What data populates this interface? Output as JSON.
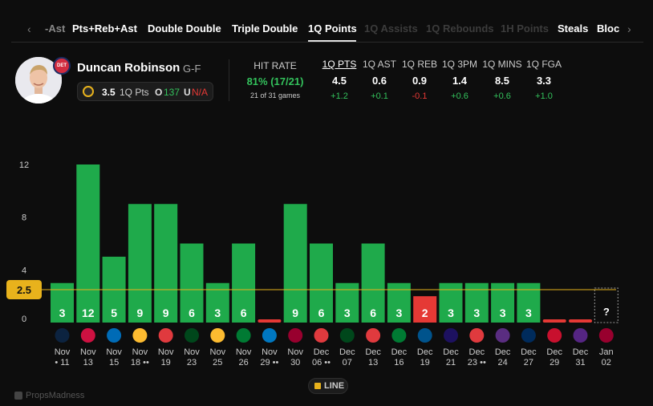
{
  "tabs": {
    "items": [
      {
        "label": "-Ast",
        "style": "faded"
      },
      {
        "label": "Pts+Reb+Ast",
        "style": "normal"
      },
      {
        "label": "Double Double",
        "style": "normal"
      },
      {
        "label": "Triple Double",
        "style": "normal"
      },
      {
        "label": "1Q Points",
        "style": "active"
      },
      {
        "label": "1Q Assists",
        "style": "dim"
      },
      {
        "label": "1Q Rebounds",
        "style": "dim"
      },
      {
        "label": "1H Points",
        "style": "dim"
      },
      {
        "label": "Steals",
        "style": "normal"
      },
      {
        "label": "Bloc",
        "style": "normal"
      }
    ],
    "left_arrow": "‹",
    "right_arrow": "›"
  },
  "player": {
    "name": "Duncan Robinson",
    "position": "G-F",
    "team_badge": "DET",
    "line": "3.5",
    "line_stat": "1Q Pts",
    "over_label": "O",
    "over_value": "137",
    "under_label": "U",
    "under_value": "N/A"
  },
  "hit_rate": {
    "label": "HIT RATE",
    "value": "81% (17/21)",
    "sub": "21 of 31 games"
  },
  "stats": [
    {
      "label": "1Q PTS",
      "value": "4.5",
      "diff": "+1.2",
      "sign": "pos",
      "underline": true
    },
    {
      "label": "1Q AST",
      "value": "0.6",
      "diff": "+0.1",
      "sign": "pos",
      "underline": false
    },
    {
      "label": "1Q REB",
      "value": "0.9",
      "diff": "-0.1",
      "sign": "neg",
      "underline": false
    },
    {
      "label": "1Q 3PM",
      "value": "1.4",
      "diff": "+0.6",
      "sign": "pos",
      "underline": false
    },
    {
      "label": "1Q MINS",
      "value": "8.5",
      "diff": "+0.6",
      "sign": "pos",
      "underline": false
    },
    {
      "label": "1Q FGA",
      "value": "3.3",
      "diff": "+1.0",
      "sign": "pos",
      "underline": false
    }
  ],
  "colors": {
    "over": "#1faa4b",
    "under": "#e53935",
    "line": "#e8b21c",
    "grid": "#ffffff"
  },
  "chart_data": {
    "type": "bar",
    "title": "",
    "xlabel": "",
    "ylabel": "",
    "ylim": [
      0,
      12
    ],
    "yticks": [
      0,
      4,
      8,
      12
    ],
    "threshold": 2.5,
    "threshold_label": "2.5",
    "unknown_label": "?",
    "categories": [
      {
        "month": "Nov",
        "day": "11",
        "pre": "•",
        "post": "",
        "team": "WAS"
      },
      {
        "month": "Nov",
        "day": "13",
        "pre": "",
        "post": "",
        "team": "CHI"
      },
      {
        "month": "Nov",
        "day": "15",
        "pre": "",
        "post": "",
        "team": "PHI"
      },
      {
        "month": "Nov",
        "day": "18",
        "pre": "",
        "post": "••",
        "team": "IND"
      },
      {
        "month": "Nov",
        "day": "19",
        "pre": "",
        "post": "",
        "team": "ATL"
      },
      {
        "month": "Nov",
        "day": "23",
        "pre": "",
        "post": "",
        "team": "MIL"
      },
      {
        "month": "Nov",
        "day": "25",
        "pre": "",
        "post": "",
        "team": "IND"
      },
      {
        "month": "Nov",
        "day": "26",
        "pre": "",
        "post": "",
        "team": "BOS"
      },
      {
        "month": "Nov",
        "day": "29",
        "pre": "",
        "post": "••",
        "team": "ORL"
      },
      {
        "month": "Nov",
        "day": "30",
        "pre": "",
        "post": "",
        "team": "MIA"
      },
      {
        "month": "Dec",
        "day": "06",
        "pre": "",
        "post": "••",
        "team": "POR"
      },
      {
        "month": "Dec",
        "day": "07",
        "pre": "",
        "post": "",
        "team": "MIL"
      },
      {
        "month": "Dec",
        "day": "13",
        "pre": "",
        "post": "",
        "team": "ATL"
      },
      {
        "month": "Dec",
        "day": "16",
        "pre": "",
        "post": "",
        "team": "BOS"
      },
      {
        "month": "Dec",
        "day": "19",
        "pre": "",
        "post": "",
        "team": "DAL"
      },
      {
        "month": "Dec",
        "day": "21",
        "pre": "",
        "post": "",
        "team": "CHA"
      },
      {
        "month": "Dec",
        "day": "23",
        "pre": "",
        "post": "••",
        "team": "POR"
      },
      {
        "month": "Dec",
        "day": "24",
        "pre": "",
        "post": "",
        "team": "SAC"
      },
      {
        "month": "Dec",
        "day": "27",
        "pre": "",
        "post": "",
        "team": "UTA"
      },
      {
        "month": "Dec",
        "day": "29",
        "pre": "",
        "post": "",
        "team": "LAC"
      },
      {
        "month": "Dec",
        "day": "31",
        "pre": "",
        "post": "",
        "team": "LAL"
      },
      {
        "month": "Jan",
        "day": "02",
        "pre": "",
        "post": "",
        "team": "MIA"
      }
    ],
    "values": [
      3,
      12,
      5,
      9,
      9,
      6,
      3,
      6,
      0,
      9,
      6,
      3,
      6,
      3,
      2,
      3,
      3,
      3,
      3,
      0,
      0,
      null
    ],
    "labels": [
      "3",
      "12",
      "5",
      "9",
      "9",
      "6",
      "3",
      "6",
      "",
      "9",
      "6",
      "3",
      "6",
      "3",
      "2",
      "3",
      "3",
      "3",
      "3",
      "",
      "",
      "?"
    ],
    "legend_toggle": "LINE"
  },
  "watermark": "PropsMadness"
}
